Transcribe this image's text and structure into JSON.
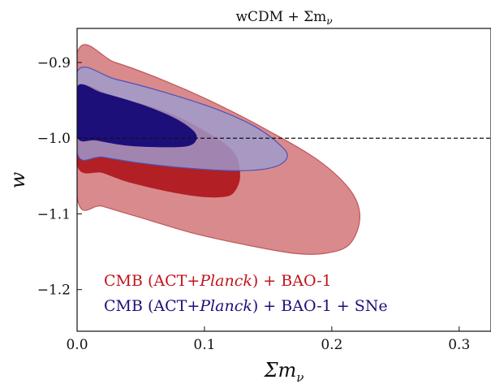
{
  "chart_data": {
    "type": "contour",
    "title": "wCDM + Σm",
    "title_subscript": "ν",
    "xlabel": "Σm",
    "xlabel_subscript": "ν",
    "ylabel": "w",
    "xlim": [
      0.0,
      0.325
    ],
    "ylim": [
      -1.255,
      -0.855
    ],
    "x_ticks": [
      0.0,
      0.1,
      0.2,
      0.3
    ],
    "x_tick_labels": [
      "0.0",
      "0.1",
      "0.2",
      "0.3"
    ],
    "y_ticks": [
      -0.9,
      -1.0,
      -1.1,
      -1.2
    ],
    "y_tick_labels": [
      "−0.9",
      "−1.0",
      "−1.1",
      "−1.2"
    ],
    "reference_line": {
      "y": -1.0,
      "style": "dashed",
      "color": "#111111"
    },
    "colors": {
      "red_outer": "#d98a8c",
      "red_outer_stroke": "#c0575b",
      "red_inner": "#b21f24",
      "blue_outer": "#9e9cd0",
      "blue_outer_stroke": "#4f50b8",
      "blue_inner": "#1d0f7a"
    },
    "series": [
      {
        "legend_parts": [
          "CMB (ACT+",
          "Planck",
          ") + BAO-1"
        ],
        "legend_color": "#c0141c",
        "contours": [
          {
            "level": "95%",
            "color_key": "red_outer",
            "points": [
              [
                0,
                -0.888
              ],
              [
                0.03,
                -0.9
              ],
              [
                0.07,
                -0.925
              ],
              [
                0.11,
                -0.955
              ],
              [
                0.15,
                -0.99
              ],
              [
                0.19,
                -1.03
              ],
              [
                0.215,
                -1.07
              ],
              [
                0.222,
                -1.105
              ],
              [
                0.214,
                -1.14
              ],
              [
                0.195,
                -1.152
              ],
              [
                0.17,
                -1.152
              ],
              [
                0.13,
                -1.14
              ],
              [
                0.09,
                -1.125
              ],
              [
                0.05,
                -1.105
              ],
              [
                0.02,
                -1.09
              ],
              [
                0,
                -1.078
              ]
            ]
          },
          {
            "level": "68%",
            "color_key": "red_inner",
            "points": [
              [
                0,
                -0.935
              ],
              [
                0.03,
                -0.945
              ],
              [
                0.07,
                -0.965
              ],
              [
                0.1,
                -0.99
              ],
              [
                0.123,
                -1.018
              ],
              [
                0.128,
                -1.05
              ],
              [
                0.123,
                -1.072
              ],
              [
                0.113,
                -1.078
              ],
              [
                0.095,
                -1.077
              ],
              [
                0.07,
                -1.07
              ],
              [
                0.04,
                -1.058
              ],
              [
                0.02,
                -1.046
              ],
              [
                0,
                -1.036
              ]
            ]
          }
        ]
      },
      {
        "legend_parts": [
          "CMB (ACT+",
          "Planck",
          ") + BAO-1 + SNe"
        ],
        "legend_color": "#1d0f7a",
        "contours": [
          {
            "level": "95%",
            "color_key": "blue_outer",
            "points": [
              [
                0,
                -0.912
              ],
              [
                0.03,
                -0.922
              ],
              [
                0.07,
                -0.94
              ],
              [
                0.11,
                -0.962
              ],
              [
                0.14,
                -0.985
              ],
              [
                0.16,
                -1.01
              ],
              [
                0.165,
                -1.025
              ],
              [
                0.155,
                -1.038
              ],
              [
                0.13,
                -1.043
              ],
              [
                0.09,
                -1.04
              ],
              [
                0.05,
                -1.033
              ],
              [
                0.02,
                -1.025
              ],
              [
                0,
                -1.02
              ]
            ]
          },
          {
            "level": "68%",
            "color_key": "blue_inner",
            "points": [
              [
                0,
                -0.932
              ],
              [
                0.02,
                -0.94
              ],
              [
                0.05,
                -0.955
              ],
              [
                0.075,
                -0.972
              ],
              [
                0.09,
                -0.988
              ],
              [
                0.094,
                -1.0
              ],
              [
                0.088,
                -1.01
              ],
              [
                0.07,
                -1.012
              ],
              [
                0.04,
                -1.01
              ],
              [
                0.015,
                -1.003
              ],
              [
                0,
                -0.998
              ]
            ]
          }
        ]
      }
    ]
  }
}
